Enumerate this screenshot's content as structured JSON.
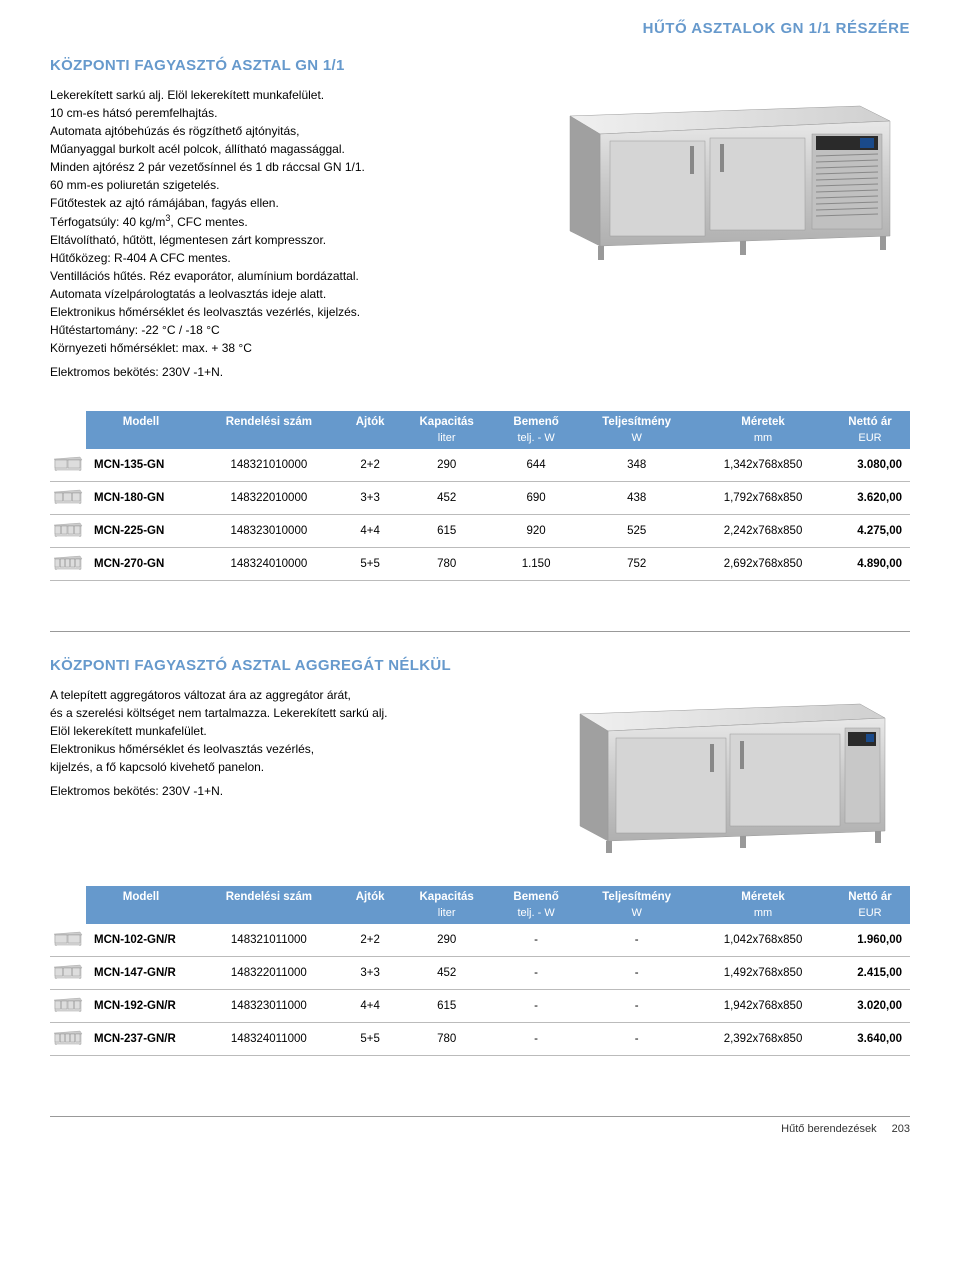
{
  "colors": {
    "accent": "#6699cc",
    "text": "#000000",
    "border": "#bbbbbb",
    "steel_light": "#dcdcdc",
    "steel_dark": "#a8a8a8",
    "background": "#ffffff"
  },
  "page_header": "HŰTŐ ASZTALOK GN 1/1 RÉSZÉRE",
  "section1": {
    "title": "KÖZPONTI FAGYASZTÓ ASZTAL GN 1/1",
    "desc_lines": [
      "Lekerekített sarkú alj. Elöl lekerekített munkafelület.",
      "10 cm-es hátsó peremfelhajtás.",
      "Automata ajtóbehúzás és rögzíthető ajtónyitás,",
      "Műanyaggal burkolt acél polcok, állítható magassággal.",
      "Minden ajtórész 2 pár vezetősínnel és 1 db ráccsal GN 1/1.",
      "60 mm-es poliuretán szigetelés.",
      "Fűtőtestek az ajtó rámájában, fagyás ellen.",
      "Térfogatsúly: 40 kg/m³, CFC mentes.",
      "Eltávolítható, hűtött, légmentesen zárt kompresszor.",
      "Hűtőközeg: R-404 A CFC mentes.",
      "Ventillációs hűtés. Réz evaporátor, alumínium bordázattal.",
      "Automata vízelpárologtatás a leolvasztás ideje alatt.",
      "Elektronikus hőmérséklet és leolvasztás vezérlés, kijelzés.",
      "Hűtéstartomány: -22 °C / -18 °C",
      "Környezeti hőmérséklet: max. + 38 °C",
      "Elektromos bekötés: 230V -1+N."
    ]
  },
  "table": {
    "headers_row1": [
      "",
      "Modell",
      "Rendelési szám",
      "Ajtók",
      "Kapacitás",
      "Bemenő",
      "Teljesítmény",
      "Méretek",
      "Nettó ár"
    ],
    "headers_row2": [
      "",
      "",
      "",
      "",
      "liter",
      "telj. - W",
      "W",
      "mm",
      "EUR"
    ]
  },
  "table1_rows": [
    {
      "doors": 2,
      "model": "MCN-135-GN",
      "order": "148321010000",
      "ajtok": "2+2",
      "kap": "290",
      "bem": "644",
      "telj": "348",
      "meret": "1,342x768x850",
      "ar": "3.080,00"
    },
    {
      "doors": 3,
      "model": "MCN-180-GN",
      "order": "148322010000",
      "ajtok": "3+3",
      "kap": "452",
      "bem": "690",
      "telj": "438",
      "meret": "1,792x768x850",
      "ar": "3.620,00"
    },
    {
      "doors": 4,
      "model": "MCN-225-GN",
      "order": "148323010000",
      "ajtok": "4+4",
      "kap": "615",
      "bem": "920",
      "telj": "525",
      "meret": "2,242x768x850",
      "ar": "4.275,00"
    },
    {
      "doors": 5,
      "model": "MCN-270-GN",
      "order": "148324010000",
      "ajtok": "5+5",
      "kap": "780",
      "bem": "1.150",
      "telj": "752",
      "meret": "2,692x768x850",
      "ar": "4.890,00"
    }
  ],
  "section2": {
    "title": "KÖZPONTI FAGYASZTÓ ASZTAL AGGREGÁT NÉLKÜL",
    "desc_lines": [
      "A telepített aggregátoros változat ára az aggregátor árát,",
      "és a szerelési költséget nem tartalmazza. Lekerekített sarkú alj.",
      "Elöl lekerekített munkafelület.",
      "Elektronikus hőmérséklet és leolvasztás vezérlés,",
      "kijelzés, a fő kapcsoló kivehető panelon.",
      "Elektromos bekötés: 230V -1+N."
    ]
  },
  "table2_rows": [
    {
      "doors": 2,
      "model": "MCN-102-GN/R",
      "order": "148321011000",
      "ajtok": "2+2",
      "kap": "290",
      "bem": "-",
      "telj": "-",
      "meret": "1,042x768x850",
      "ar": "1.960,00"
    },
    {
      "doors": 3,
      "model": "MCN-147-GN/R",
      "order": "148322011000",
      "ajtok": "3+3",
      "kap": "452",
      "bem": "-",
      "telj": "-",
      "meret": "1,492x768x850",
      "ar": "2.415,00"
    },
    {
      "doors": 4,
      "model": "MCN-192-GN/R",
      "order": "148323011000",
      "ajtok": "4+4",
      "kap": "615",
      "bem": "-",
      "telj": "-",
      "meret": "1,942x768x850",
      "ar": "3.020,00"
    },
    {
      "doors": 5,
      "model": "MCN-237-GN/R",
      "order": "148324011000",
      "ajtok": "5+5",
      "kap": "780",
      "bem": "-",
      "telj": "-",
      "meret": "2,392x768x850",
      "ar": "3.640,00"
    }
  ],
  "footer": {
    "label": "Hűtő berendezések",
    "page": "203"
  }
}
